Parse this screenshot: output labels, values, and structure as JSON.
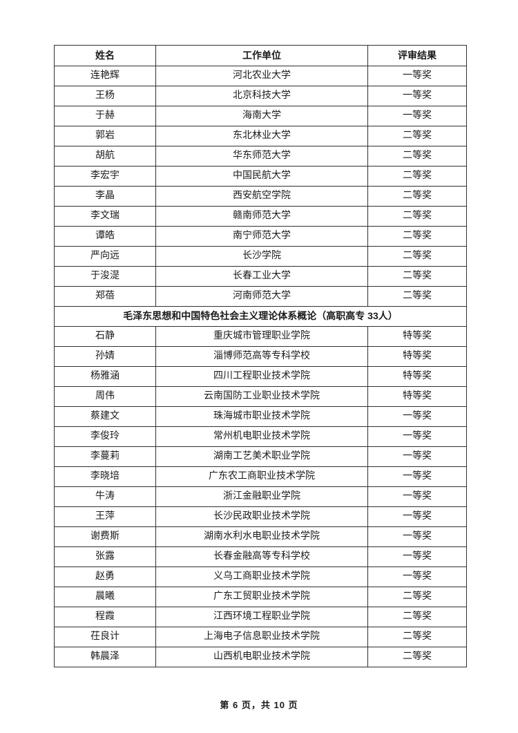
{
  "colors": {
    "border": "#2f2f2f",
    "text": "#1a1a1a",
    "background": "#ffffff"
  },
  "table": {
    "headers": [
      "姓名",
      "工作单位",
      "评审结果"
    ],
    "rows": [
      {
        "name": "连艳辉",
        "unit": "河北农业大学",
        "result": "一等奖"
      },
      {
        "name": "王杨",
        "unit": "北京科技大学",
        "result": "一等奖"
      },
      {
        "name": "于赫",
        "unit": "海南大学",
        "result": "一等奖"
      },
      {
        "name": "郭岩",
        "unit": "东北林业大学",
        "result": "二等奖"
      },
      {
        "name": "胡航",
        "unit": "华东师范大学",
        "result": "二等奖"
      },
      {
        "name": "李宏宇",
        "unit": "中国民航大学",
        "result": "二等奖"
      },
      {
        "name": "李晶",
        "unit": "西安航空学院",
        "result": "二等奖"
      },
      {
        "name": "李文瑞",
        "unit": "赣南师范大学",
        "result": "二等奖"
      },
      {
        "name": "谭皓",
        "unit": "南宁师范大学",
        "result": "二等奖"
      },
      {
        "name": "严向远",
        "unit": "长沙学院",
        "result": "二等奖"
      },
      {
        "name": "于浚湜",
        "unit": "长春工业大学",
        "result": "二等奖"
      },
      {
        "name": "郑蓓",
        "unit": "河南师范大学",
        "result": "二等奖"
      },
      {
        "section": "毛泽东思想和中国特色社会主义理论体系概论（高职高专 33人）"
      },
      {
        "name": "石静",
        "unit": "重庆城市管理职业学院",
        "result": "特等奖"
      },
      {
        "name": "孙婧",
        "unit": "淄博师范高等专科学校",
        "result": "特等奖"
      },
      {
        "name": "杨雅涵",
        "unit": "四川工程职业技术学院",
        "result": "特等奖"
      },
      {
        "name": "周伟",
        "unit": "云南国防工业职业技术学院",
        "result": "特等奖"
      },
      {
        "name": "蔡建文",
        "unit": "珠海城市职业技术学院",
        "result": "一等奖"
      },
      {
        "name": "李俊玲",
        "unit": "常州机电职业技术学院",
        "result": "一等奖"
      },
      {
        "name": "李蔓莉",
        "unit": "湖南工艺美术职业学院",
        "result": "一等奖"
      },
      {
        "name": "李晓培",
        "unit": "广东农工商职业技术学院",
        "result": "一等奖"
      },
      {
        "name": "牛涛",
        "unit": "浙江金融职业学院",
        "result": "一等奖"
      },
      {
        "name": "王萍",
        "unit": "长沙民政职业技术学院",
        "result": "一等奖"
      },
      {
        "name": "谢费斯",
        "unit": "湖南水利水电职业技术学院",
        "result": "一等奖"
      },
      {
        "name": "张露",
        "unit": "长春金融高等专科学校",
        "result": "一等奖"
      },
      {
        "name": "赵勇",
        "unit": "义乌工商职业技术学院",
        "result": "一等奖"
      },
      {
        "name": "晨曦",
        "unit": "广东工贸职业技术学院",
        "result": "二等奖"
      },
      {
        "name": "程霞",
        "unit": "江西环境工程职业学院",
        "result": "二等奖"
      },
      {
        "name": "茌良计",
        "unit": "上海电子信息职业技术学院",
        "result": "二等奖"
      },
      {
        "name": "韩晨泽",
        "unit": "山西机电职业技术学院",
        "result": "二等奖"
      }
    ]
  },
  "footer": {
    "page_indicator": "第 6 页，共 10 页"
  }
}
